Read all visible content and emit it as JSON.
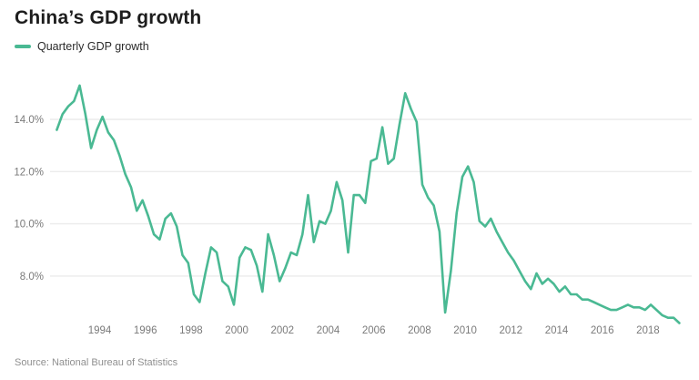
{
  "header": {
    "title": "China’s GDP growth"
  },
  "legend": {
    "label": "Quarterly GDP growth"
  },
  "footer": {
    "source": "Source: National Bureau of Statistics"
  },
  "colors": {
    "line": "#4ab993",
    "grid": "#ececec",
    "axis_text": "#7a7a7a",
    "title_text": "#1d1d1d",
    "source_text": "#8f8f8f",
    "background": "#ffffff"
  },
  "chart_data": {
    "type": "line",
    "title": "China’s GDP growth",
    "legend_position": "top-left",
    "grid": "horizontal",
    "unit": "percent YoY",
    "x_start": {
      "year": 1992,
      "quarter": 1
    },
    "x_end": {
      "year": 2019,
      "quarter": 2
    },
    "points_per_year": 4,
    "ylim": [
      6.0,
      15.6
    ],
    "y_ticks": [
      {
        "label": "14.0%",
        "value": 14
      },
      {
        "label": "12.0%",
        "value": 12
      },
      {
        "label": "10.0%",
        "value": 10
      },
      {
        "label": "8.0%",
        "value": 8
      }
    ],
    "x_ticks": [
      {
        "label": "1994",
        "value": 1994
      },
      {
        "label": "1996",
        "value": 1996
      },
      {
        "label": "1998",
        "value": 1998
      },
      {
        "label": "2000",
        "value": 2000
      },
      {
        "label": "2002",
        "value": 2002
      },
      {
        "label": "2004",
        "value": 2004
      },
      {
        "label": "2006",
        "value": 2006
      },
      {
        "label": "2008",
        "value": 2008
      },
      {
        "label": "2010",
        "value": 2010
      },
      {
        "label": "2012",
        "value": 2012
      },
      {
        "label": "2014",
        "value": 2014
      },
      {
        "label": "2016",
        "value": 2016
      },
      {
        "label": "2018",
        "value": 2018
      }
    ],
    "series": [
      {
        "name": "Quarterly GDP growth",
        "values": [
          13.6,
          14.2,
          14.5,
          14.7,
          15.3,
          14.2,
          12.9,
          13.6,
          14.1,
          13.5,
          13.2,
          12.6,
          11.9,
          11.4,
          10.5,
          10.9,
          10.3,
          9.6,
          9.4,
          10.2,
          10.4,
          9.9,
          8.8,
          8.5,
          7.3,
          7.0,
          8.1,
          9.1,
          8.9,
          7.8,
          7.6,
          6.9,
          8.7,
          9.1,
          9.0,
          8.4,
          7.4,
          9.6,
          8.8,
          7.8,
          8.3,
          8.9,
          8.8,
          9.6,
          11.1,
          9.3,
          10.1,
          10.0,
          10.5,
          11.6,
          10.9,
          8.9,
          11.1,
          11.1,
          10.8,
          12.4,
          12.5,
          13.7,
          12.3,
          12.5,
          13.8,
          15.0,
          14.4,
          13.9,
          11.5,
          11.0,
          10.7,
          9.7,
          6.6,
          8.2,
          10.4,
          11.8,
          12.2,
          11.6,
          10.1,
          9.9,
          10.2,
          9.7,
          9.3,
          8.9,
          8.6,
          8.2,
          7.8,
          7.5,
          8.1,
          7.7,
          7.9,
          7.7,
          7.4,
          7.6,
          7.3,
          7.3,
          7.1,
          7.1,
          7.0,
          6.9,
          6.8,
          6.7,
          6.7,
          6.8,
          6.9,
          6.8,
          6.8,
          6.7,
          6.9,
          6.7,
          6.5,
          6.4,
          6.4,
          6.2
        ]
      }
    ]
  }
}
